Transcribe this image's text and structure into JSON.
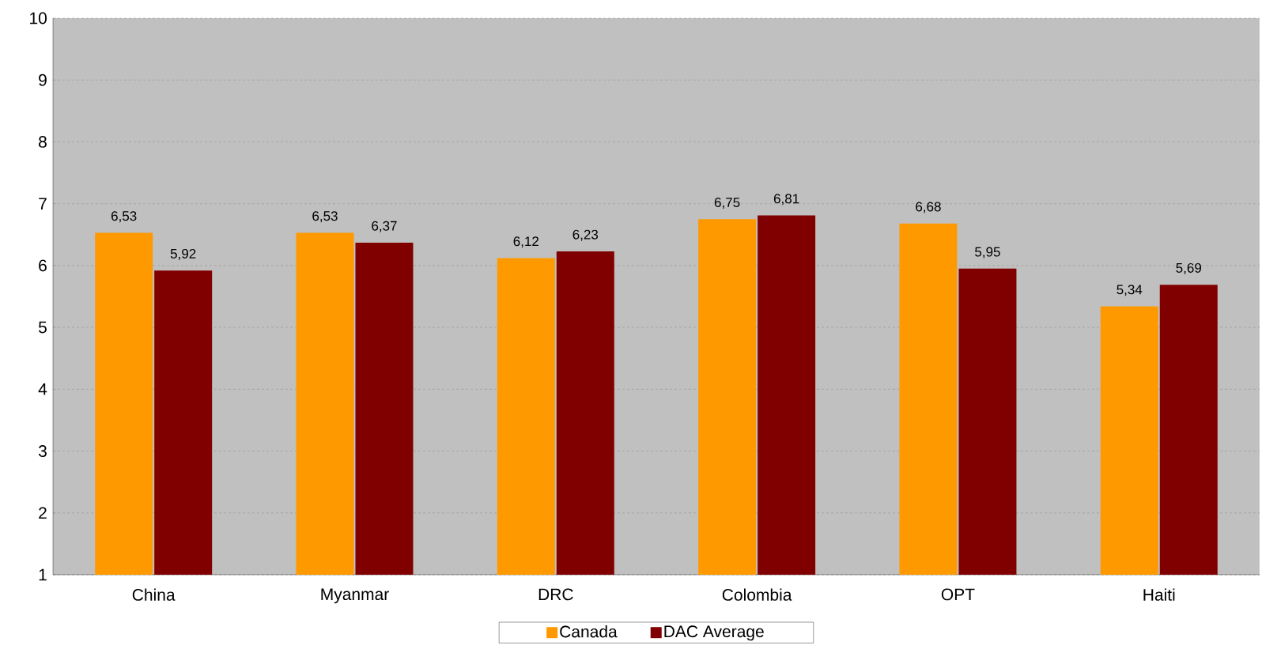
{
  "chart_data": {
    "type": "bar",
    "categories": [
      "China",
      "Myanmar",
      "DRC",
      "Colombia",
      "OPT",
      "Haiti"
    ],
    "series": [
      {
        "name": "Canada",
        "color": "#ff9900",
        "values": [
          6.53,
          6.53,
          6.12,
          6.75,
          6.68,
          5.34
        ],
        "value_labels": [
          "6,53",
          "6,53",
          "6,12",
          "6,75",
          "6,68",
          "5,34"
        ]
      },
      {
        "name": "DAC Average",
        "color": "#800000",
        "values": [
          5.92,
          6.37,
          6.23,
          6.81,
          5.95,
          5.69
        ],
        "value_labels": [
          "5,92",
          "6,37",
          "6,23",
          "6,81",
          "5,95",
          "5,69"
        ]
      }
    ],
    "ylim": [
      1,
      10
    ],
    "yticks": [
      1,
      2,
      3,
      4,
      5,
      6,
      7,
      8,
      9,
      10
    ],
    "grid": "y",
    "legend": "bottom"
  }
}
